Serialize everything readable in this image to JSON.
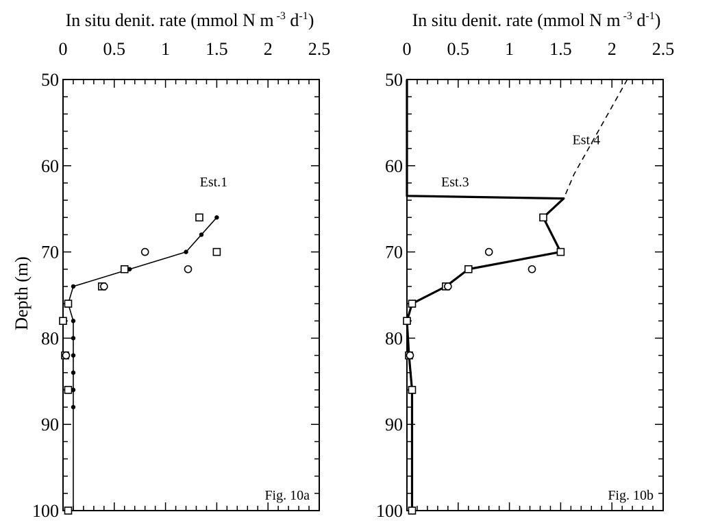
{
  "y_title": "Depth (m)",
  "chart_data": [
    {
      "type": "scatter",
      "panel_label": "Fig. 10a",
      "x_title_main": "In situ denit. rate (mmol N m",
      "x_title_sup1": "-3",
      "x_title_mid": " d",
      "x_title_sup2": "-1",
      "x_title_end": ")",
      "ylabel": "Depth (m)",
      "xlim": [
        0,
        2.5
      ],
      "ylim": [
        50,
        100
      ],
      "y_inverted": true,
      "x_ticks": [
        "0",
        "0.5",
        "1",
        "1.5",
        "2",
        "2.5"
      ],
      "y_ticks": [
        "50",
        "60",
        "70",
        "80",
        "90",
        "100"
      ],
      "annotations": [
        {
          "text": "Est.1",
          "x": 1.47,
          "y": 62.4
        }
      ],
      "series": [
        {
          "name": "",
          "style": "thin-line",
          "points": [
            [
              1.5,
              66
            ],
            [
              1.35,
              68
            ],
            [
              1.2,
              70
            ],
            [
              0.65,
              72
            ],
            [
              0.1,
              74
            ],
            [
              0.05,
              76
            ],
            [
              0.1,
              78
            ],
            [
              0.1,
              80
            ],
            [
              0.1,
              82
            ],
            [
              0.1,
              84
            ],
            [
              0.1,
              86
            ],
            [
              0.1,
              88
            ],
            [
              0.1,
              100
            ]
          ]
        },
        {
          "name": "",
          "style": "filled-dot",
          "points": [
            [
              1.5,
              66
            ],
            [
              1.35,
              68
            ],
            [
              1.2,
              70
            ],
            [
              0.65,
              72
            ],
            [
              0.1,
              74
            ],
            [
              0.05,
              76
            ],
            [
              0.1,
              78
            ],
            [
              0.1,
              80
            ],
            [
              0.1,
              82
            ],
            [
              0.1,
              84
            ],
            [
              0.1,
              86
            ],
            [
              0.1,
              88
            ]
          ]
        },
        {
          "name": "",
          "style": "open-square",
          "points": [
            [
              1.33,
              66
            ],
            [
              1.5,
              70
            ],
            [
              0.6,
              72
            ],
            [
              0.38,
              74
            ],
            [
              0.05,
              76
            ],
            [
              0.0,
              78
            ],
            [
              0.02,
              82
            ],
            [
              0.05,
              86
            ],
            [
              0.05,
              100
            ]
          ]
        },
        {
          "name": "",
          "style": "open-circle",
          "points": [
            [
              0.8,
              70
            ],
            [
              1.22,
              72
            ],
            [
              0.4,
              74
            ],
            [
              0.03,
              82
            ]
          ]
        }
      ]
    },
    {
      "type": "scatter",
      "panel_label": "Fig. 10b",
      "x_title_main": "In situ denit. rate (mmol N m",
      "x_title_sup1": "-3",
      "x_title_mid": " d",
      "x_title_sup2": "-1",
      "x_title_end": ")",
      "ylabel": "",
      "xlim": [
        0,
        2.5
      ],
      "ylim": [
        50,
        100
      ],
      "y_inverted": true,
      "x_ticks": [
        "0",
        "0.5",
        "1",
        "1.5",
        "2",
        "2.5"
      ],
      "y_ticks": [
        "50",
        "60",
        "70",
        "80",
        "90",
        "100"
      ],
      "annotations": [
        {
          "text": "Est.4",
          "x": 1.75,
          "y": 57.5
        },
        {
          "text": "Est.3",
          "x": 0.47,
          "y": 62.4
        }
      ],
      "series": [
        {
          "name": "Est.3",
          "style": "thick-line",
          "points": [
            [
              0.0,
              50
            ],
            [
              0.0,
              63.5
            ],
            [
              1.53,
              63.8
            ],
            [
              1.33,
              66
            ],
            [
              1.5,
              70
            ],
            [
              0.6,
              72
            ],
            [
              0.38,
              74
            ],
            [
              0.05,
              76
            ],
            [
              0.0,
              78
            ],
            [
              0.02,
              82
            ],
            [
              0.05,
              86
            ],
            [
              0.05,
              100
            ]
          ]
        },
        {
          "name": "Est.4",
          "style": "dashed-line",
          "points": [
            [
              2.15,
              50
            ],
            [
              1.63,
              61
            ],
            [
              1.53,
              63.8
            ],
            [
              1.33,
              66
            ],
            [
              1.5,
              70
            ],
            [
              0.6,
              72
            ],
            [
              0.38,
              74
            ],
            [
              0.05,
              76
            ],
            [
              0.0,
              78
            ]
          ]
        },
        {
          "name": "",
          "style": "open-square",
          "points": [
            [
              1.33,
              66
            ],
            [
              1.5,
              70
            ],
            [
              0.6,
              72
            ],
            [
              0.38,
              74
            ],
            [
              0.05,
              76
            ],
            [
              0.0,
              78
            ],
            [
              0.02,
              82
            ],
            [
              0.05,
              86
            ],
            [
              0.05,
              100
            ]
          ]
        },
        {
          "name": "",
          "style": "open-circle",
          "points": [
            [
              0.8,
              70
            ],
            [
              1.22,
              72
            ],
            [
              0.4,
              74
            ],
            [
              0.03,
              82
            ]
          ]
        }
      ]
    }
  ]
}
